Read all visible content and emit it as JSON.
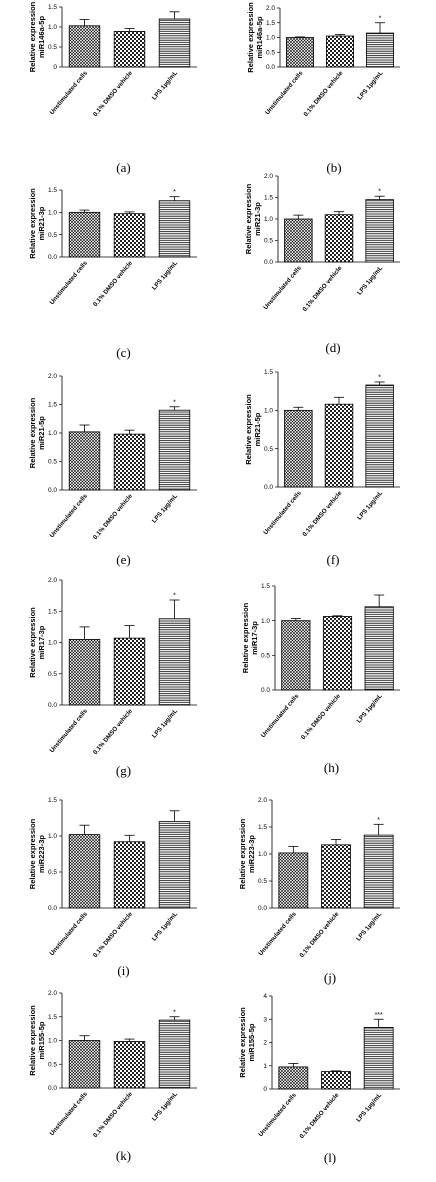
{
  "figure": {
    "categories": [
      "Unstimulated cells",
      "0.1% DMSO vehicle",
      "LPS 1µg/mL"
    ],
    "ylabel_line1": "Relative expression"
  },
  "chart_data": [
    {
      "panel": "(a)",
      "type": "bar",
      "ylabel": "miR146a-5p",
      "ylim": [
        0,
        1.5
      ],
      "yticks": [
        0,
        0.5,
        1.0,
        1.5
      ],
      "tick_labels": [
        "0",
        "0.5",
        "1.0",
        "1.5"
      ],
      "values": [
        1.03,
        0.89,
        1.2
      ],
      "errors": [
        0.16,
        0.07,
        0.18
      ],
      "significance": [
        "",
        "",
        ""
      ]
    },
    {
      "panel": "(b)",
      "type": "bar",
      "ylabel": "miR146a-5p",
      "ylim": [
        0,
        2.0
      ],
      "yticks": [
        0,
        0.5,
        1.0,
        1.5,
        2.0
      ],
      "tick_labels": [
        "0.0",
        "0.5",
        "1.0",
        "1.5",
        "2.0"
      ],
      "values": [
        1.0,
        1.05,
        1.15
      ],
      "errors": [
        0.02,
        0.05,
        0.35
      ],
      "significance": [
        "",
        "",
        "*"
      ]
    },
    {
      "panel": "(c)",
      "type": "bar",
      "ylabel": "miR21-3p",
      "ylim": [
        0,
        1.5
      ],
      "yticks": [
        0,
        0.5,
        1.0,
        1.5
      ],
      "tick_labels": [
        "0.0",
        "0.5",
        "1.0",
        "1.5"
      ],
      "values": [
        1.0,
        0.97,
        1.26
      ],
      "errors": [
        0.05,
        0.04,
        0.09
      ],
      "significance": [
        "",
        "",
        "*"
      ]
    },
    {
      "panel": "(d)",
      "type": "bar",
      "ylabel": "miR21-3p",
      "ylim": [
        0,
        2.0
      ],
      "yticks": [
        0,
        0.5,
        1.0,
        1.5,
        2.0
      ],
      "tick_labels": [
        "0.0",
        "0.5",
        "1.0",
        "1.5",
        "2.0"
      ],
      "values": [
        1.0,
        1.1,
        1.45
      ],
      "errors": [
        0.09,
        0.07,
        0.08
      ],
      "significance": [
        "",
        "",
        "*"
      ]
    },
    {
      "panel": "(e)",
      "type": "bar",
      "ylabel": "miR21-5p",
      "ylim": [
        0,
        2.0
      ],
      "yticks": [
        0,
        0.5,
        1.0,
        1.5,
        2.0
      ],
      "tick_labels": [
        "0.0",
        "0.5",
        "1.0",
        "1.5",
        "2.0"
      ],
      "values": [
        1.02,
        0.98,
        1.4
      ],
      "errors": [
        0.12,
        0.07,
        0.06
      ],
      "significance": [
        "",
        "",
        "*"
      ]
    },
    {
      "panel": "(f)",
      "type": "bar",
      "ylabel": "miR21-5p",
      "ylim": [
        0,
        1.5
      ],
      "yticks": [
        0,
        0.5,
        1.0,
        1.5
      ],
      "tick_labels": [
        "0.0",
        "0.5",
        "1.0",
        "1.5"
      ],
      "values": [
        1.0,
        1.08,
        1.33
      ],
      "errors": [
        0.04,
        0.09,
        0.04
      ],
      "significance": [
        "",
        "",
        "*"
      ]
    },
    {
      "panel": "(g)",
      "type": "bar",
      "ylabel": "miR17-3p",
      "ylim": [
        0,
        2.0
      ],
      "yticks": [
        0,
        0.5,
        1.0,
        1.5,
        2.0
      ],
      "tick_labels": [
        "0.0",
        "0.5",
        "1.0",
        "1.5",
        "2.0"
      ],
      "values": [
        1.05,
        1.07,
        1.38
      ],
      "errors": [
        0.2,
        0.2,
        0.3
      ],
      "significance": [
        "",
        "",
        "*"
      ]
    },
    {
      "panel": "(h)",
      "type": "bar",
      "ylabel": "miR17-3p",
      "ylim": [
        0,
        1.5
      ],
      "yticks": [
        0,
        0.5,
        1.0,
        1.5
      ],
      "tick_labels": [
        "0.0",
        "0.5",
        "1.0",
        "1.5"
      ],
      "values": [
        1.0,
        1.06,
        1.2
      ],
      "errors": [
        0.03,
        0.01,
        0.17
      ],
      "significance": [
        "",
        "",
        ""
      ]
    },
    {
      "panel": "(i)",
      "type": "bar",
      "ylabel": "miR223-3p",
      "ylim": [
        0,
        1.5
      ],
      "yticks": [
        0,
        0.5,
        1.0,
        1.5
      ],
      "tick_labels": [
        "0.0",
        "0.5",
        "1.0",
        "1.5"
      ],
      "values": [
        1.02,
        0.92,
        1.2
      ],
      "errors": [
        0.13,
        0.09,
        0.15
      ],
      "significance": [
        "",
        "",
        ""
      ]
    },
    {
      "panel": "(j)",
      "type": "bar",
      "ylabel": "miR223-3p",
      "ylim": [
        0,
        2.0
      ],
      "yticks": [
        0,
        0.5,
        1.0,
        1.5,
        2.0
      ],
      "tick_labels": [
        "0.0",
        "0.5",
        "1.0",
        "1.5",
        "2.0"
      ],
      "values": [
        1.02,
        1.17,
        1.35
      ],
      "errors": [
        0.12,
        0.1,
        0.2
      ],
      "significance": [
        "",
        "",
        "*"
      ]
    },
    {
      "panel": "(k)",
      "type": "bar",
      "ylabel": "miR155-5p",
      "ylim": [
        0,
        2.0
      ],
      "yticks": [
        0,
        0.5,
        1.0,
        1.5,
        2.0
      ],
      "tick_labels": [
        "0.0",
        "0.5",
        "1.0",
        "1.5",
        "2.0"
      ],
      "values": [
        1.0,
        0.98,
        1.43
      ],
      "errors": [
        0.1,
        0.05,
        0.07
      ],
      "significance": [
        "",
        "",
        "*"
      ]
    },
    {
      "panel": "(l)",
      "type": "bar",
      "ylabel": "miR155-5p",
      "ylim": [
        0,
        4
      ],
      "yticks": [
        0,
        1,
        2,
        3,
        4
      ],
      "tick_labels": [
        "0",
        "1",
        "2",
        "3",
        "4"
      ],
      "values": [
        0.95,
        0.75,
        2.65
      ],
      "errors": [
        0.15,
        0.03,
        0.35
      ],
      "significance": [
        "",
        "",
        "***"
      ]
    }
  ],
  "style": {
    "bar_fill": "#ffffff",
    "bar_pattern_1": "diagonal-crosshatch",
    "bar_pattern_2": "checkerboard",
    "bar_pattern_3": "horizontal-lines",
    "stroke": "#000000"
  }
}
